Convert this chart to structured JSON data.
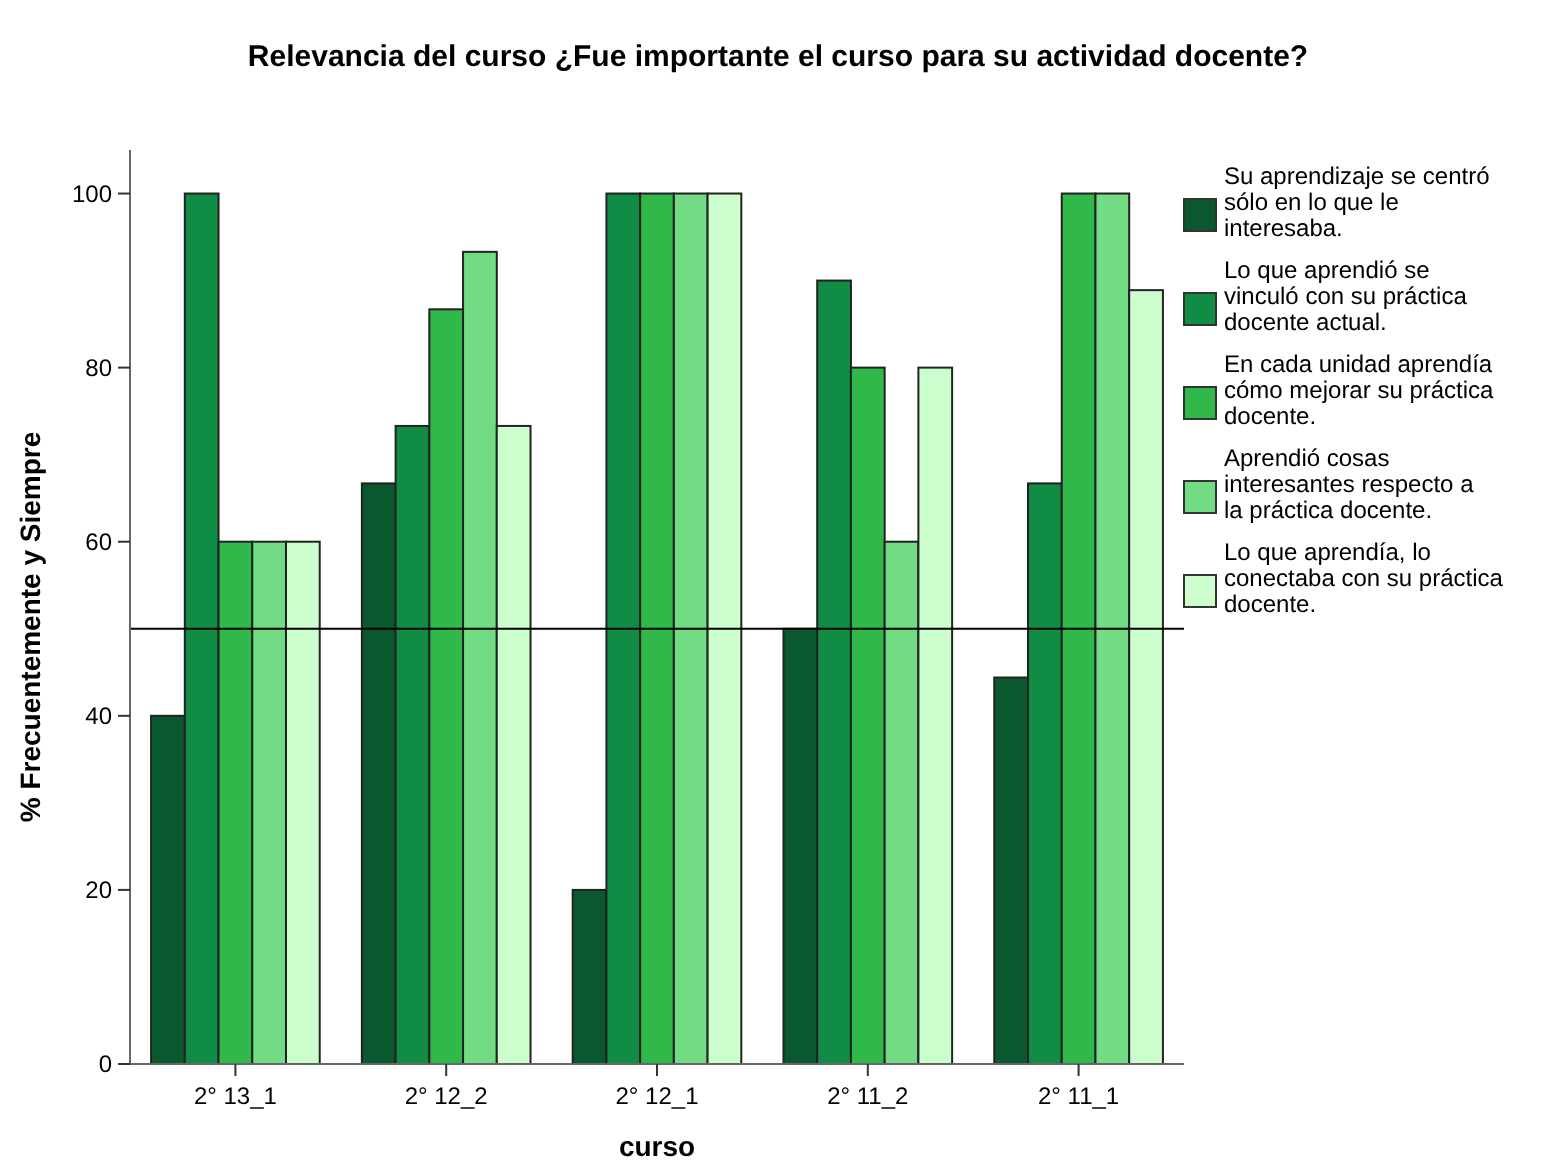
{
  "chart_data": {
    "type": "bar",
    "title": "Relevancia del curso ¿Fue importante el curso para su actividad docente?",
    "xlabel": "curso",
    "ylabel": "% Frecuentemente y Siempre",
    "categories": [
      "2° 13_1",
      "2° 12_2",
      "2° 12_1",
      "2° 11_2",
      "2° 11_1"
    ],
    "series": [
      {
        "name": "Su aprendizaje se centró sólo en lo que le interesaba.",
        "color": "#0a582d",
        "values": [
          40,
          66.7,
          20,
          50,
          44.4
        ]
      },
      {
        "name": "Lo que aprendió se vinculó con su práctica docente actual.",
        "color": "#108c45",
        "values": [
          100,
          73.3,
          100,
          90,
          66.7
        ]
      },
      {
        "name": "En cada unidad aprendía cómo mejorar su práctica docente.",
        "color": "#31b84a",
        "values": [
          60,
          86.7,
          100,
          80,
          100
        ]
      },
      {
        "name": "Aprendió cosas interesantes respecto a la práctica docente.",
        "color": "#72dc85",
        "values": [
          60,
          93.3,
          100,
          60,
          100
        ]
      },
      {
        "name": "Lo que aprendía, lo conectaba con su práctica docente.",
        "color": "#ccfdcc",
        "values": [
          60,
          73.3,
          100,
          80,
          88.9
        ]
      }
    ],
    "ylim": [
      0,
      105
    ],
    "yticks": [
      0,
      20,
      40,
      60,
      80,
      100
    ],
    "ref_lines": [
      {
        "axis": "y",
        "value": 50,
        "color": "#000000"
      }
    ],
    "legend": "right",
    "grid": false
  }
}
